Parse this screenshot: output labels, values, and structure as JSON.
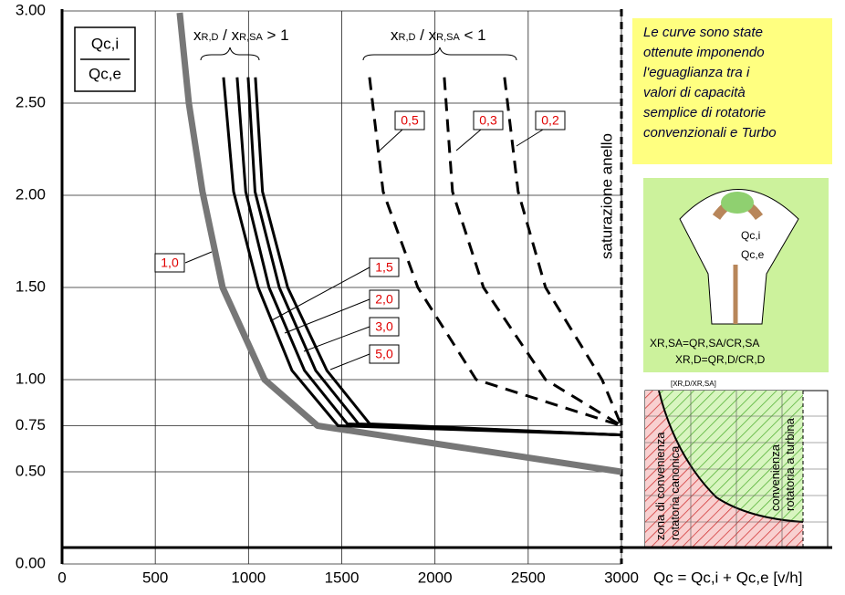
{
  "chart_data": {
    "type": "line",
    "xlim": [
      0,
      3000
    ],
    "xticks": [
      0,
      500,
      1000,
      1500,
      2000,
      2500,
      3000
    ],
    "ylim": [
      0,
      3
    ],
    "yticks": [
      {
        "value": 0,
        "label": "0.00"
      },
      {
        "value": 0.5,
        "label": "0.50"
      },
      {
        "value": 0.75,
        "label": "0.75"
      },
      {
        "value": 1,
        "label": "1.00"
      },
      {
        "value": 1.5,
        "label": "1.50"
      },
      {
        "value": 2,
        "label": "2.00"
      },
      {
        "value": 2.5,
        "label": "2.50"
      },
      {
        "value": 3,
        "label": "3.00"
      }
    ],
    "grid": true,
    "x_label": "Qc = Qc,i + Qc,e [v/h]",
    "y_label_top": "Qc,i",
    "y_label_bottom": "Qc,e",
    "saturation_label": "saturazione anello",
    "header_left": [
      "x",
      "R,D",
      " / x",
      "R,SA",
      " > 1"
    ],
    "header_right": [
      "x",
      "R,D",
      " / x",
      "R,SA",
      " < 1"
    ],
    "series": [
      {
        "name": "1,0",
        "color": "#777777",
        "style": "solid",
        "width": 7,
        "x": [
          631,
          680,
          753,
          861,
          1086,
          1370,
          3000
        ],
        "values": [
          2.99,
          2.5,
          2.02,
          1.5,
          1.0,
          0.75,
          0.5
        ]
      },
      {
        "name": "1,5",
        "color": "#000000",
        "style": "solid",
        "width": 3,
        "x": [
          866,
          920,
          1052,
          1233,
          1480,
          3000
        ],
        "values": [
          2.64,
          2.02,
          1.5,
          1.05,
          0.75,
          0.7
        ]
      },
      {
        "name": "2,0",
        "color": "#000000",
        "style": "solid",
        "width": 3,
        "x": [
          939,
          985,
          1110,
          1300,
          1530,
          3000
        ],
        "values": [
          2.64,
          2.02,
          1.5,
          1.05,
          0.76,
          0.7
        ]
      },
      {
        "name": "3,0",
        "color": "#000000",
        "style": "solid",
        "width": 3,
        "x": [
          998,
          1035,
          1165,
          1360,
          1590,
          3000
        ],
        "values": [
          2.64,
          2.02,
          1.5,
          1.05,
          0.76,
          0.7
        ]
      },
      {
        "name": "5,0",
        "color": "#000000",
        "style": "solid",
        "width": 3,
        "x": [
          1037,
          1075,
          1210,
          1420,
          1650,
          3000
        ],
        "values": [
          2.64,
          2.02,
          1.5,
          1.05,
          0.76,
          0.7
        ]
      },
      {
        "name": "0,5",
        "color": "#000000",
        "style": "dashed",
        "width": 3,
        "x": [
          1649,
          1722,
          1908,
          2221,
          3000
        ],
        "values": [
          2.64,
          2.02,
          1.5,
          1.0,
          0.75
        ]
      },
      {
        "name": "0,3",
        "color": "#000000",
        "style": "dashed",
        "width": 3,
        "x": [
          2050,
          2094,
          2260,
          2593,
          3000
        ],
        "values": [
          2.64,
          2.02,
          1.5,
          1.0,
          0.75
        ]
      },
      {
        "name": "0,2",
        "color": "#000000",
        "style": "dashed",
        "width": 3,
        "x": [
          2373,
          2446,
          2593,
          2896,
          3000
        ],
        "values": [
          2.64,
          2.02,
          1.5,
          1.0,
          0.75
        ]
      }
    ]
  },
  "note": [
    "Le curve sono state",
    "ottenute imponendo",
    "l'eguaglianza tra i",
    "valori di capacità",
    "semplice di rotatorie",
    "convenzionali e Turbo"
  ],
  "diagram": {
    "flow_in": "Qc,i",
    "flow_out": "Qc,e",
    "formula_sa": "XR,SA=QR,SA/CR,SA",
    "formula_d": "XR,D=QR,D/CR,D"
  },
  "inset": {
    "axis_label": "[XR,D/XR,SA]",
    "zone_left": [
      "zona di convenienza",
      "rotatoria canonica"
    ],
    "zone_right": [
      "convenienza",
      "rotatoria a turbina"
    ]
  }
}
